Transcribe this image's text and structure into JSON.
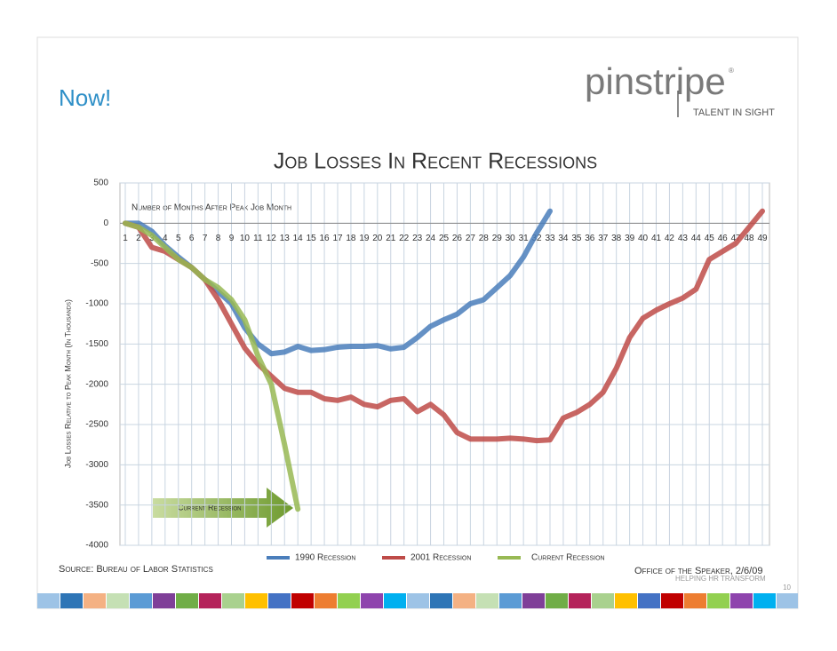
{
  "header": {
    "slide_title": "Now!",
    "logo": "pinstripe",
    "logo_mark": "®",
    "tagline": "TALENT IN SIGHT"
  },
  "chart_data": {
    "type": "line",
    "title": "Job Losses In Recent Recessions",
    "x_label": "Number of Months After Peak Job Month",
    "y_label": "Job Losses Relative to Peak Month (In Thousands)",
    "annotation": "Current Recession",
    "x": [
      1,
      2,
      3,
      4,
      5,
      6,
      7,
      8,
      9,
      10,
      11,
      12,
      13,
      14,
      15,
      16,
      17,
      18,
      19,
      20,
      21,
      22,
      23,
      24,
      25,
      26,
      27,
      28,
      29,
      30,
      31,
      32,
      33,
      34,
      35,
      36,
      37,
      38,
      39,
      40,
      41,
      42,
      43,
      44,
      45,
      46,
      47,
      48,
      49
    ],
    "xlim": [
      1,
      49
    ],
    "xticks": [
      1,
      2,
      3,
      4,
      5,
      6,
      7,
      8,
      9,
      10,
      11,
      12,
      13,
      14,
      15,
      16,
      17,
      18,
      19,
      20,
      21,
      22,
      23,
      24,
      25,
      26,
      27,
      28,
      29,
      30,
      31,
      32,
      33,
      34,
      35,
      36,
      37,
      38,
      39,
      40,
      41,
      42,
      43,
      44,
      45,
      46,
      47,
      48,
      49
    ],
    "ylim": [
      -4000,
      500
    ],
    "yticks": [
      500,
      0,
      -500,
      -1000,
      -1500,
      -2000,
      -2500,
      -3000,
      -3500,
      -4000
    ],
    "grid": true,
    "series": [
      {
        "name": "1990 Recession",
        "color": "#4a7ebb",
        "values": [
          0,
          0,
          -100,
          -280,
          -420,
          -550,
          -700,
          -850,
          -1000,
          -1300,
          -1500,
          -1620,
          -1600,
          -1530,
          -1580,
          -1570,
          -1540,
          -1530,
          -1530,
          -1520,
          -1560,
          -1540,
          -1420,
          -1280,
          -1200,
          -1130,
          -1000,
          -950,
          -800,
          -650,
          -420,
          -120,
          150,
          null,
          null,
          null,
          null,
          null,
          null,
          null,
          null,
          null,
          null,
          null,
          null,
          null,
          null,
          null,
          null
        ]
      },
      {
        "name": "2001 Recession",
        "color": "#be4b48",
        "values": [
          0,
          -50,
          -300,
          -350,
          -450,
          -550,
          -700,
          -950,
          -1250,
          -1550,
          -1750,
          -1900,
          -2050,
          -2100,
          -2100,
          -2180,
          -2200,
          -2160,
          -2250,
          -2280,
          -2200,
          -2180,
          -2340,
          -2250,
          -2380,
          -2600,
          -2680,
          -2680,
          -2680,
          -2670,
          -2680,
          -2700,
          -2690,
          -2420,
          -2350,
          -2250,
          -2100,
          -1800,
          -1420,
          -1180,
          -1080,
          -1000,
          -930,
          -820,
          -450,
          -350,
          -250,
          -50,
          150
        ]
      },
      {
        "name": "Current Recession",
        "color": "#98b954",
        "values": [
          0,
          -50,
          -150,
          -300,
          -450,
          -550,
          -700,
          -800,
          -950,
          -1200,
          -1650,
          -2000,
          -2750,
          -3550,
          null,
          null,
          null,
          null,
          null,
          null,
          null,
          null,
          null,
          null,
          null,
          null,
          null,
          null,
          null,
          null,
          null,
          null,
          null,
          null,
          null,
          null,
          null,
          null,
          null,
          null,
          null,
          null,
          null,
          null,
          null,
          null,
          null,
          null,
          null
        ]
      }
    ]
  },
  "footer": {
    "source": "Source: Bureau of Labor Statistics",
    "credit": "Office of the Speaker, 2/6/09",
    "tag": "HELPING HR TRANSFORM",
    "page": "10"
  }
}
